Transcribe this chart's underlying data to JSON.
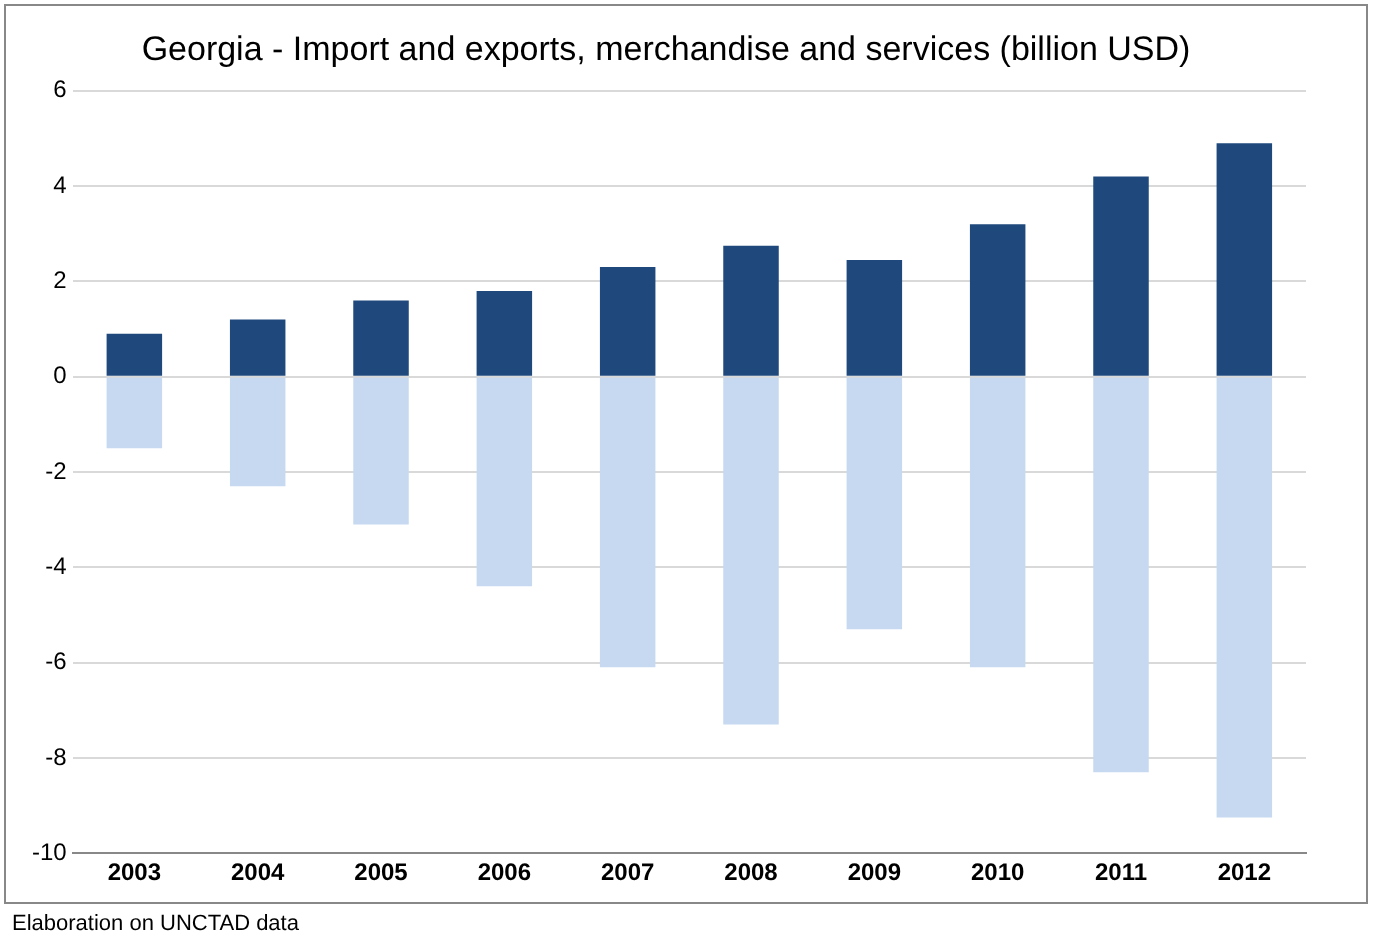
{
  "chart_data": {
    "type": "bar",
    "title": "Georgia - Import and exports, merchandise and services (billion USD)",
    "categories": [
      "2003",
      "2004",
      "2005",
      "2006",
      "2007",
      "2008",
      "2009",
      "2010",
      "2011",
      "2012"
    ],
    "series": [
      {
        "color": "#1f497d",
        "values": [
          0.9,
          1.2,
          1.6,
          1.8,
          2.3,
          2.75,
          2.45,
          3.2,
          4.2,
          4.9
        ]
      },
      {
        "color": "#c6d9f1",
        "values": [
          -1.5,
          -2.3,
          -3.1,
          -4.4,
          -6.1,
          -7.3,
          -5.3,
          -6.1,
          -8.3,
          -9.25
        ]
      }
    ],
    "stacked": true,
    "ylim": [
      -10,
      6
    ],
    "yticks": [
      -10,
      -8,
      -6,
      -4,
      -2,
      0,
      2,
      4,
      6
    ],
    "grid": "y",
    "legend": false,
    "annotations": [
      "Elaboration on UNCTAD data"
    ]
  }
}
